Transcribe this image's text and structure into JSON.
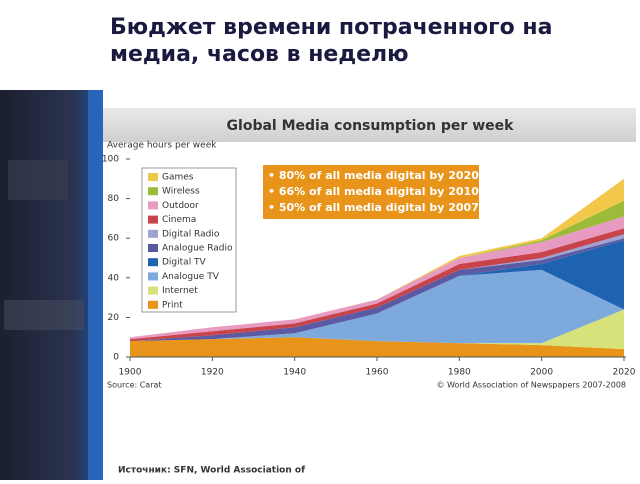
{
  "slide": {
    "title": [
      "Бюджет времени потраченного на",
      "медиа, часов в неделю"
    ],
    "source": "Источник: SFN, World Association of"
  },
  "chart_data": {
    "type": "area",
    "stacked": true,
    "title": "Global Media consumption per week",
    "y_label": "Average hours per week",
    "source": "Source: Carat",
    "copyright": "© World Association of Newspapers 2007-2008",
    "annotations": [
      "• 80% of all media digital by 2020",
      "• 66% of all media digital by 2010",
      "• 50% of all media digital by 2007"
    ],
    "annotation_color": "#e8941a",
    "x": [
      1900,
      1920,
      1940,
      1960,
      1980,
      2000,
      2020
    ],
    "xlim": [
      1900,
      2020
    ],
    "xticks": [
      1900,
      1920,
      1940,
      1960,
      1980,
      2000,
      2020
    ],
    "ylim": [
      0,
      100
    ],
    "yticks": [
      0,
      20,
      40,
      60,
      80,
      100
    ],
    "series": [
      {
        "name": "Print",
        "color": "#e8941a",
        "values": [
          8,
          9,
          10,
          8,
          7,
          6,
          4
        ]
      },
      {
        "name": "Internet",
        "color": "#d7e27a",
        "values": [
          0,
          0,
          0,
          0,
          0,
          1,
          20
        ]
      },
      {
        "name": "Analogue TV",
        "color": "#7ea9dc",
        "values": [
          0,
          0,
          2,
          14,
          34,
          37,
          0
        ]
      },
      {
        "name": "Digital TV",
        "color": "#1e63b0",
        "values": [
          0,
          0,
          0,
          0,
          0,
          3,
          35
        ]
      },
      {
        "name": "Analogue Radio",
        "color": "#5b5aa3",
        "values": [
          0,
          2,
          3,
          3,
          3,
          2,
          1
        ]
      },
      {
        "name": "Digital Radio",
        "color": "#9ea3d3",
        "values": [
          0,
          0,
          0,
          0,
          0,
          1,
          2
        ]
      },
      {
        "name": "Cinema",
        "color": "#c8434a",
        "values": [
          1,
          2,
          2,
          2,
          3,
          3,
          3
        ]
      },
      {
        "name": "Outdoor",
        "color": "#e79bc0",
        "values": [
          1,
          2,
          2,
          2,
          3,
          5,
          6
        ]
      },
      {
        "name": "Wireless",
        "color": "#9dbb3a",
        "values": [
          0,
          0,
          0,
          0,
          0,
          1,
          8
        ]
      },
      {
        "name": "Games",
        "color": "#f2c84b",
        "values": [
          0,
          0,
          0,
          0,
          1,
          1,
          11
        ]
      }
    ]
  }
}
